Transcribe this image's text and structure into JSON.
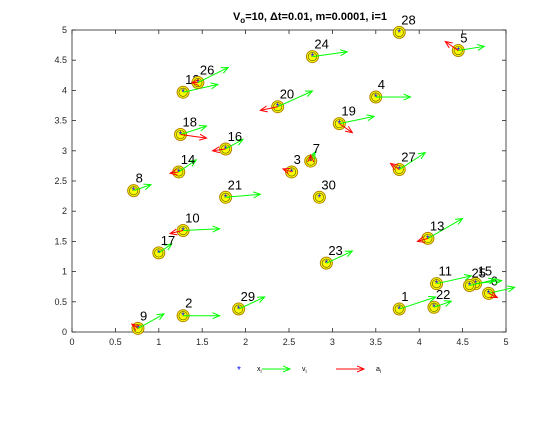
{
  "chart_data": {
    "type": "scatter",
    "title": "V_o=10, Δt=0.01, m=0.0001, i=1",
    "title_parts": {
      "lead": "V",
      "sub": "o",
      "rest": "=10, Δt=0.01, m=0.0001, i=1"
    },
    "xlabel": "",
    "ylabel": "",
    "xlim": [
      0,
      5
    ],
    "ylim": [
      0,
      5
    ],
    "xticks": [
      "0",
      "0.5",
      "1",
      "1.5",
      "2",
      "2.5",
      "3",
      "3.5",
      "4",
      "4.5",
      "5"
    ],
    "yticks": [
      "0",
      "0.5",
      "1",
      "1.5",
      "2",
      "2.5",
      "3",
      "3.5",
      "4",
      "4.5",
      "5"
    ],
    "grid": false,
    "legend": {
      "placement": "bottom-outside",
      "entries": [
        {
          "main": "x",
          "sub": "i",
          "marker": "star",
          "color": "#0000ff"
        },
        {
          "main": "v",
          "sub": "i",
          "marker": "arrow",
          "color": "#00ff00"
        },
        {
          "main": "a",
          "sub": "i",
          "marker": "arrow",
          "color": "#ff0000"
        }
      ]
    },
    "colors": {
      "position": "#0000ff",
      "velocity": "#00ff00",
      "acceleration": "#ff0000",
      "ring_fill": "#ffff00",
      "ring_edge": "#b08000"
    },
    "points": [
      {
        "id": "1",
        "x": 3.77,
        "y": 0.38,
        "vx": 0.42,
        "vy": 0.2,
        "ax": 0,
        "ay": 0
      },
      {
        "id": "2",
        "x": 1.28,
        "y": 0.27,
        "vx": 0.42,
        "vy": 0.0,
        "ax": 0,
        "ay": 0
      },
      {
        "id": "3",
        "x": 2.53,
        "y": 2.65,
        "vx": 0,
        "vy": 0,
        "ax": -0.1,
        "ay": 0.05
      },
      {
        "id": "4",
        "x": 3.5,
        "y": 3.89,
        "vx": 0.4,
        "vy": 0.0,
        "ax": 0,
        "ay": 0
      },
      {
        "id": "5",
        "x": 4.45,
        "y": 4.66,
        "vx": 0.3,
        "vy": 0.07,
        "ax": -0.15,
        "ay": 0.15
      },
      {
        "id": "6",
        "x": 4.8,
        "y": 0.64,
        "vx": 0.3,
        "vy": 0.1,
        "ax": 0.1,
        "ay": -0.07
      },
      {
        "id": "7",
        "x": 2.75,
        "y": 2.83,
        "vx": 0.05,
        "vy": 0.15,
        "ax": 0,
        "ay": 0.1
      },
      {
        "id": "8",
        "x": 0.71,
        "y": 2.34,
        "vx": 0.2,
        "vy": 0.1,
        "ax": 0,
        "ay": 0
      },
      {
        "id": "9",
        "x": 0.76,
        "y": 0.06,
        "vx": 0.3,
        "vy": 0.24,
        "ax": -0.07,
        "ay": 0.07
      },
      {
        "id": "11",
        "x": 4.2,
        "y": 0.8,
        "vx": 0.4,
        "vy": 0.13,
        "ax": 0,
        "ay": 0
      },
      {
        "id": "12",
        "x": 1.28,
        "y": 3.97,
        "vx": 0.4,
        "vy": 0.13,
        "ax": 0,
        "ay": 0
      },
      {
        "id": "13",
        "x": 4.1,
        "y": 1.55,
        "vx": 0.4,
        "vy": 0.33,
        "ax": -0.12,
        "ay": -0.05
      },
      {
        "id": "14",
        "x": 1.23,
        "y": 2.65,
        "vx": 0.2,
        "vy": 0.2,
        "ax": -0.1,
        "ay": -0.02
      },
      {
        "id": "15",
        "x": 4.65,
        "y": 0.8,
        "vx": 0.3,
        "vy": 0.05,
        "ax": 0,
        "ay": 0
      },
      {
        "id": "16",
        "x": 1.77,
        "y": 3.03,
        "vx": 0.2,
        "vy": 0.16,
        "ax": -0.15,
        "ay": -0.03
      },
      {
        "id": "17",
        "x": 1.0,
        "y": 1.31,
        "vx": 0.15,
        "vy": 0.15,
        "ax": 0,
        "ay": 0
      },
      {
        "id": "18",
        "x": 1.25,
        "y": 3.27,
        "vx": 0.3,
        "vy": 0.14,
        "ax": 0.3,
        "ay": -0.06
      },
      {
        "id": "19",
        "x": 3.08,
        "y": 3.45,
        "vx": 0.4,
        "vy": 0.12,
        "ax": 0.15,
        "ay": -0.15
      },
      {
        "id": "20",
        "x": 2.37,
        "y": 3.73,
        "vx": 0.4,
        "vy": 0.26,
        "ax": -0.2,
        "ay": -0.06
      },
      {
        "id": "21",
        "x": 1.77,
        "y": 2.23,
        "vx": 0.4,
        "vy": 0.05,
        "ax": 0,
        "ay": 0
      },
      {
        "id": "22",
        "x": 4.17,
        "y": 0.41,
        "vx": 0.2,
        "vy": 0.1,
        "ax": 0,
        "ay": 0
      },
      {
        "id": "23",
        "x": 2.93,
        "y": 1.14,
        "vx": 0.3,
        "vy": 0.2,
        "ax": 0,
        "ay": 0
      },
      {
        "id": "24",
        "x": 2.77,
        "y": 4.56,
        "vx": 0.4,
        "vy": 0.08,
        "ax": 0,
        "ay": 0
      },
      {
        "id": "25",
        "x": 4.58,
        "y": 0.77,
        "vx": 0.3,
        "vy": 0.1,
        "ax": 0,
        "ay": 0
      },
      {
        "id": "26",
        "x": 1.45,
        "y": 4.13,
        "vx": 0.35,
        "vy": 0.25,
        "ax": -0.07,
        "ay": 0
      },
      {
        "id": "27",
        "x": 3.77,
        "y": 2.69,
        "vx": 0.3,
        "vy": 0.28,
        "ax": -0.1,
        "ay": 0.1
      },
      {
        "id": "28",
        "x": 3.77,
        "y": 4.96,
        "vx": 0,
        "vy": 0,
        "ax": 0,
        "ay": 0
      },
      {
        "id": "29",
        "x": 1.92,
        "y": 0.38,
        "vx": 0.3,
        "vy": 0.2,
        "ax": 0,
        "ay": 0
      },
      {
        "id": "30",
        "x": 2.85,
        "y": 2.23,
        "vx": 0,
        "vy": 0,
        "ax": 0,
        "ay": 0
      },
      {
        "id": "10",
        "x": 1.28,
        "y": 1.68,
        "vx": 0.42,
        "vy": 0.03,
        "ax": -0.15,
        "ay": -0.05
      }
    ]
  }
}
